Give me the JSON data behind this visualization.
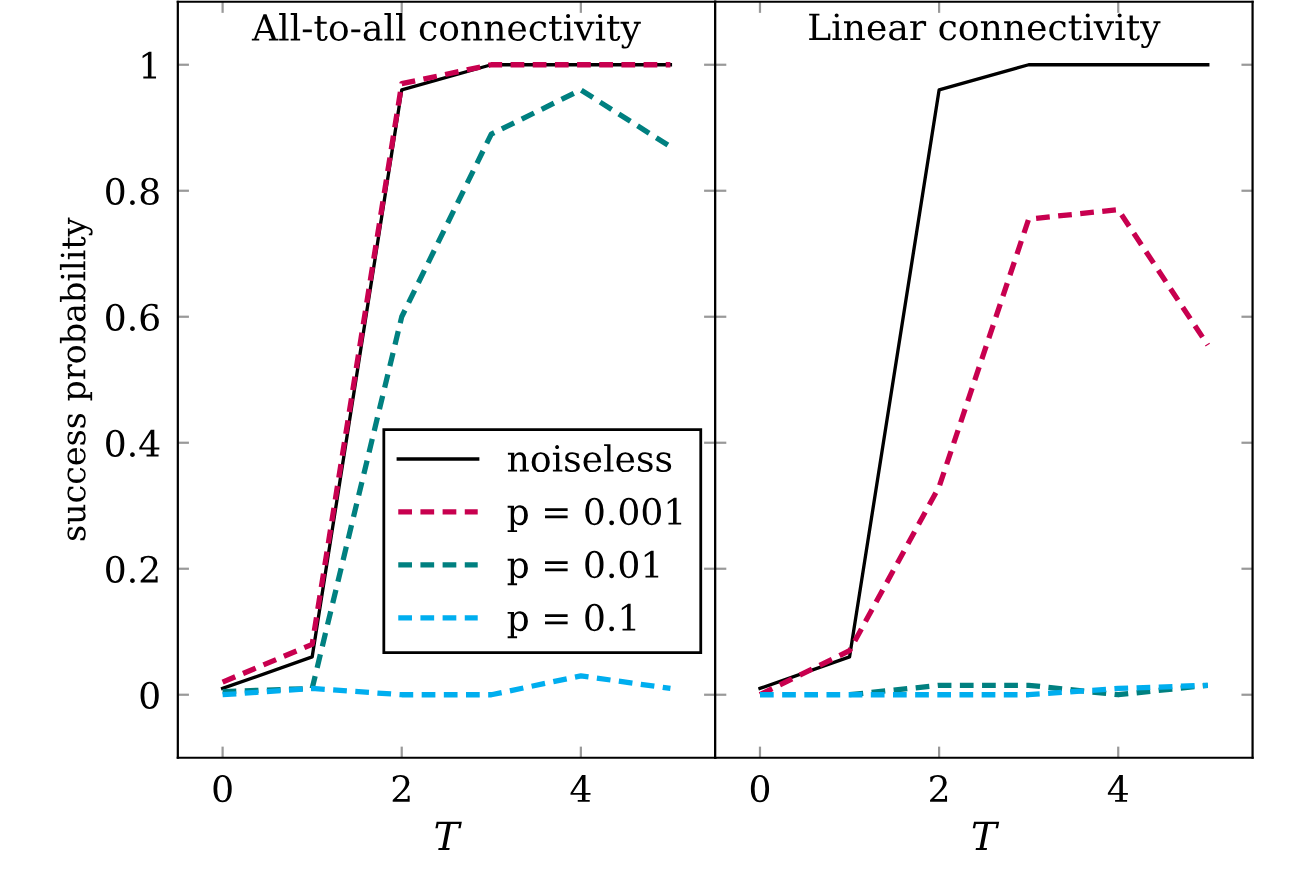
{
  "chart_data": [
    {
      "type": "line",
      "title": "All-to-all connectivity",
      "xlabel": "T",
      "ylabel": "success probability",
      "x": [
        0,
        1,
        2,
        3,
        4,
        5
      ],
      "xlim": [
        -0.5,
        5.5
      ],
      "ylim": [
        -0.1,
        1.1
      ],
      "xticks": [
        0,
        2,
        4
      ],
      "yticks": [
        0,
        0.2,
        0.4,
        0.6,
        0.8,
        1
      ],
      "grid": false,
      "legend": "lower right",
      "series": [
        {
          "name": "noiseless",
          "color": "#000000",
          "line_style": "solid",
          "values": [
            0.01,
            0.06,
            0.96,
            1,
            1,
            1
          ]
        },
        {
          "name": "p = 0.001",
          "color": "#c8004f",
          "line_style": "dashed",
          "values": [
            0.02,
            0.08,
            0.97,
            1,
            1,
            1
          ]
        },
        {
          "name": "p = 0.01",
          "color": "#008080",
          "line_style": "dashed",
          "values": [
            0.005,
            0.01,
            0.6,
            0.89,
            0.96,
            0.87
          ]
        },
        {
          "name": "p = 0.1",
          "color": "#00aeef",
          "line_style": "dashed",
          "values": [
            0,
            0.01,
            0,
            0,
            0.03,
            0.01
          ]
        }
      ]
    },
    {
      "type": "line",
      "title": "Linear connectivity",
      "xlabel": "T",
      "x": [
        0,
        1,
        2,
        3,
        4,
        5
      ],
      "xlim": [
        -0.5,
        5.5
      ],
      "ylim": [
        -0.1,
        1.1
      ],
      "xticks": [
        0,
        2,
        4
      ],
      "yticks": [
        0,
        0.2,
        0.4,
        0.6,
        0.8,
        1
      ],
      "grid": false,
      "tick_labels": "x",
      "series": [
        {
          "color": "#000000",
          "line_style": "solid",
          "values": [
            0.01,
            0.06,
            0.96,
            1,
            1,
            1
          ]
        },
        {
          "color": "#c8004f",
          "line_style": "dashed",
          "values": [
            0,
            0.07,
            0.33,
            0.755,
            0.77,
            0.555
          ]
        },
        {
          "color": "#008080",
          "line_style": "dashed",
          "values": [
            null,
            0,
            0.015,
            0.015,
            0,
            0.015
          ]
        },
        {
          "color": "#00aeef",
          "line_style": "dashed",
          "values": [
            0,
            0,
            0,
            0,
            0.01,
            0.015
          ]
        }
      ]
    }
  ]
}
